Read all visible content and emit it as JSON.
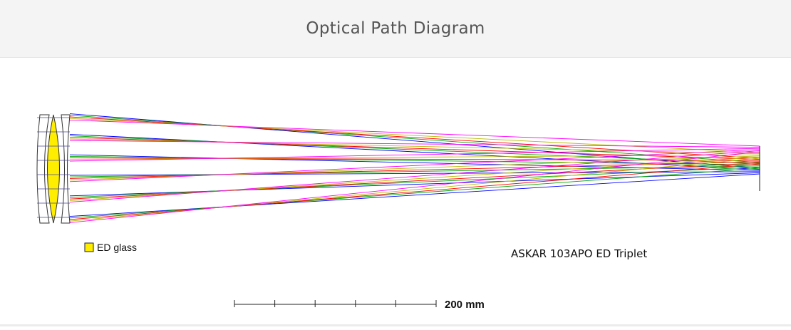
{
  "header": {
    "title": "Optical Path Diagram"
  },
  "legend": {
    "label": "ED glass",
    "swatch_color": "#ffee00"
  },
  "caption": {
    "text": "ASKAR 103APO ED Triplet"
  },
  "scale_bar": {
    "label": "200 mm",
    "ticks": 6
  },
  "rays": {
    "wavelength_colors": [
      "#0000ff",
      "#00aa00",
      "#ff0000",
      "#bbbb00",
      "#ff00ff"
    ],
    "bundles": 6
  }
}
